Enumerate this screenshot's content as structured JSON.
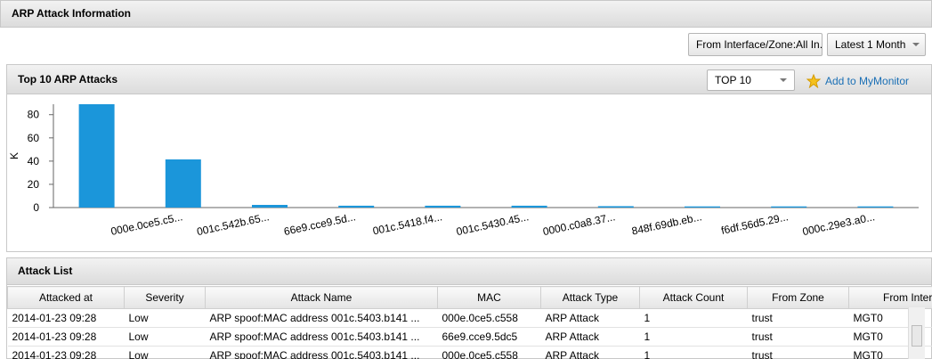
{
  "header": {
    "title": "ARP Attack Information"
  },
  "filters": {
    "interface_zone": "From Interface/Zone:All In...",
    "period": "Latest 1 Month"
  },
  "chart_panel": {
    "title": "Top 10 ARP Attacks",
    "top_select": "TOP 10",
    "add_link": "Add to MyMonitor"
  },
  "chart_data": {
    "type": "bar",
    "y_label": "K",
    "categories": [
      null,
      "000e.0ce5.c5...",
      "001c.542b.65...",
      "66e9.cce9.5d...",
      "001c.5418.f4...",
      "001c.5430.45...",
      "0000.c0a8.37...",
      "848f.69db.eb...",
      "f6df.56d5.29...",
      "000c.29e3.a0..."
    ],
    "values": [
      89,
      41.5,
      2.3,
      1.6,
      1.6,
      1.6,
      1.2,
      1,
      1,
      1
    ],
    "color": "#1b96da",
    "ylim": [
      0,
      89
    ],
    "yticks": [
      0,
      20,
      40,
      60,
      80
    ]
  },
  "table": {
    "title": "Attack List",
    "columns": [
      "Attacked at",
      "Severity",
      "Attack Name",
      "MAC",
      "Attack Type",
      "Attack Count",
      "From Zone",
      "From Interface"
    ],
    "rows": [
      [
        "2014-01-23 09:28",
        "Low",
        "ARP spoof:MAC address 001c.5403.b141 ...",
        "000e.0ce5.c558",
        "ARP Attack",
        "1",
        "trust",
        "MGT0"
      ],
      [
        "2014-01-23 09:28",
        "Low",
        "ARP spoof:MAC address 001c.5403.b141 ...",
        "66e9.cce9.5dc5",
        "ARP Attack",
        "1",
        "trust",
        "MGT0"
      ],
      [
        "2014-01-23 09:28",
        "Low",
        "ARP spoof:MAC address 001c.5403.b141 ...",
        "000e.0ce5.c558",
        "ARP Attack",
        "1",
        "trust",
        "MGT0"
      ]
    ]
  }
}
